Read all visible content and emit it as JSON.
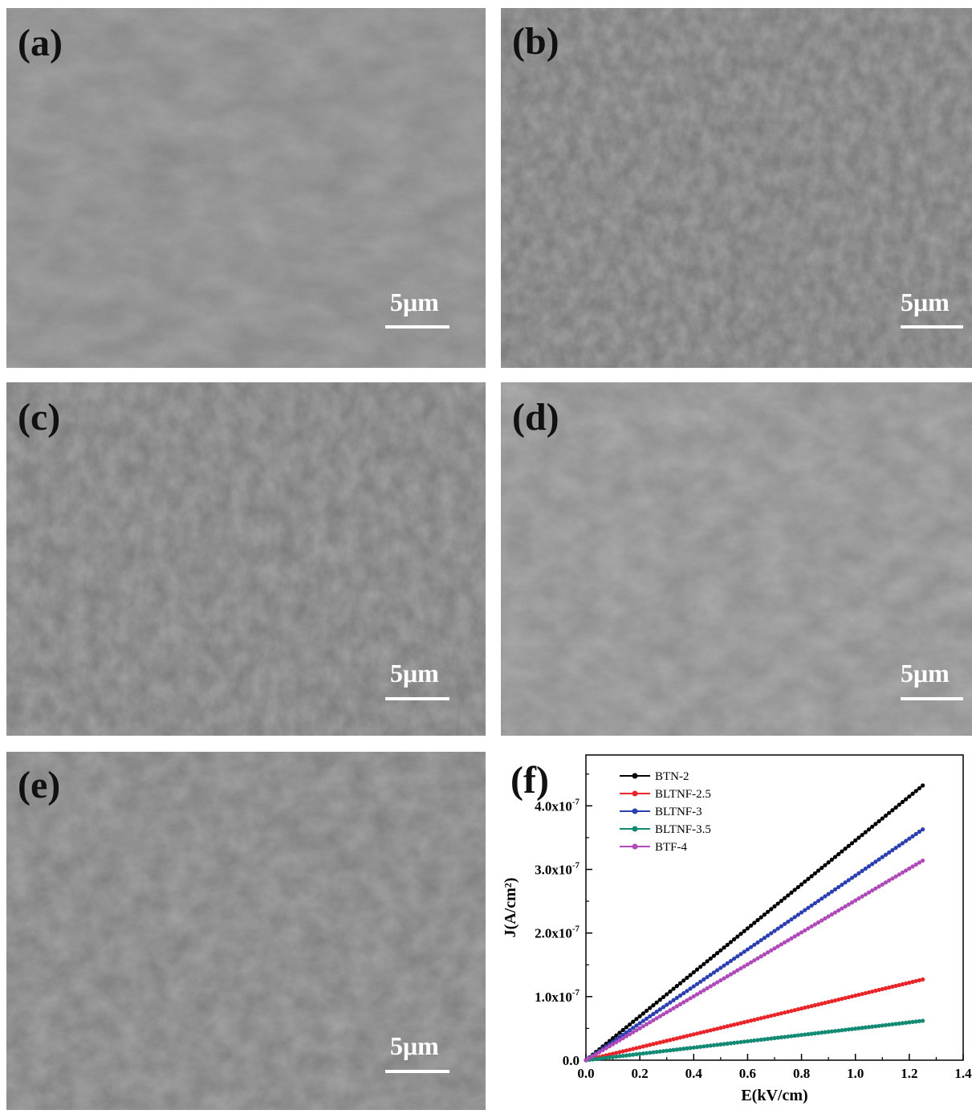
{
  "panels": [
    {
      "id": "a",
      "label": "(a)",
      "scale_label": "5μm"
    },
    {
      "id": "b",
      "label": "(b)",
      "scale_label": "5μm"
    },
    {
      "id": "c",
      "label": "(c)",
      "scale_label": "5μm"
    },
    {
      "id": "d",
      "label": "(d)",
      "scale_label": "5μm"
    },
    {
      "id": "e",
      "label": "(e)",
      "scale_label": "5μm"
    },
    {
      "id": "f",
      "label": "(f)"
    }
  ],
  "chart_data": {
    "type": "line",
    "title": "",
    "xlabel": "E(kV/cm)",
    "ylabel": "J(A/cm²)",
    "xlim": [
      0,
      1.4
    ],
    "ylim": [
      0,
      4.8e-07
    ],
    "xticks": [
      "0.0",
      "0.2",
      "0.4",
      "0.6",
      "0.8",
      "1.0",
      "1.2",
      "1.4"
    ],
    "xtick_values": [
      0,
      0.2,
      0.4,
      0.6,
      0.8,
      1.0,
      1.2,
      1.4
    ],
    "yticks": [
      {
        "value": 0,
        "mantissa": "0.0",
        "exponent": ""
      },
      {
        "value": 1e-07,
        "mantissa": "1.0x10",
        "exponent": "-7"
      },
      {
        "value": 2e-07,
        "mantissa": "2.0x10",
        "exponent": "-7"
      },
      {
        "value": 3e-07,
        "mantissa": "3.0x10",
        "exponent": "-7"
      },
      {
        "value": 4e-07,
        "mantissa": "4.0x10",
        "exponent": "-7"
      }
    ],
    "legend_position": "top-left",
    "grid": false,
    "series": [
      {
        "name": "BTN-2",
        "color": "#000000",
        "x": [
          0,
          1.25
        ],
        "y": [
          0,
          4.32e-07
        ]
      },
      {
        "name": "BLTNF-2.5",
        "color": "#e8262a",
        "x": [
          0,
          1.25
        ],
        "y": [
          0,
          1.27e-07
        ]
      },
      {
        "name": "BLTNF-3",
        "color": "#2b3fb0",
        "x": [
          0,
          1.25
        ],
        "y": [
          0,
          3.63e-07
        ]
      },
      {
        "name": "BLTNF-3.5",
        "color": "#128a74",
        "x": [
          0,
          1.25
        ],
        "y": [
          0,
          6.2e-08
        ]
      },
      {
        "name": "BTF-4",
        "color": "#b04ab8",
        "x": [
          0,
          1.25
        ],
        "y": [
          0,
          3.14e-07
        ]
      }
    ]
  }
}
